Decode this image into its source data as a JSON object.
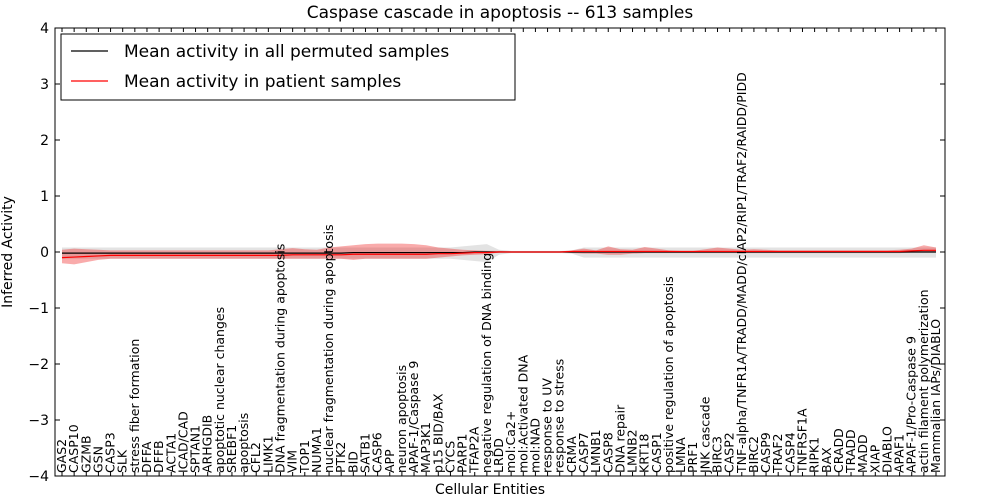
{
  "chart_data": {
    "type": "line",
    "title": "Caspase cascade in apoptosis -- 613 samples",
    "xlabel": "Cellular Entities",
    "ylabel": "Inferred Activity",
    "ylim": [
      -4,
      4
    ],
    "yticks": [
      -4,
      -3,
      -2,
      -1,
      0,
      1,
      2,
      3,
      4
    ],
    "legend_position": "top-left",
    "categories": [
      "GAS2",
      "CASP10",
      "GZMB",
      "GSN",
      "CASP3",
      "SLK",
      "stress fiber formation",
      "DFFA",
      "DFFB",
      "ACTA1",
      "ICAD/CAD",
      "SPTAN1",
      "ARHGDIB",
      "apoptotic nuclear changes",
      "SREBF1",
      "apoptosis",
      "CFL2",
      "LIMK1",
      "DNA fragmentation during apoptosis",
      "VIM",
      "TOP1",
      "NUMA1",
      "nuclear fragmentation during apoptosis",
      "PTK2",
      "BID",
      "SATB1",
      "CASP6",
      "APP",
      "neuron apoptosis",
      "APAF-1/Caspase 9",
      "MAP3K1",
      "p15 BID/BAX",
      "CYCS",
      "PARP1",
      "TFAP2A",
      "negative regulation of DNA binding",
      "LRDD",
      "mol:Ca2+",
      "mol:Activated DNA",
      "mol:NAD",
      "response to UV",
      "response to stress",
      "CRMA",
      "CASP7",
      "LMNB1",
      "CASP8",
      "DNA repair",
      "LMNB2",
      "KRT18",
      "CASP1",
      "positive regulation of apoptosis",
      "LMNA",
      "PRF1",
      "JNK cascade",
      "BIRC3",
      "CASP2",
      "TNF-alpha/TNFR1A/TRADD/MADD/cIAP2/RIP1/TRAF2/RAIDD/PIDD",
      "BIRC2",
      "CASP9",
      "TRAF2",
      "CASP4",
      "TNFRSF1A",
      "RIPK1",
      "BAX",
      "CRADD",
      "TRADD",
      "MADD",
      "XIAP",
      "DIABLO",
      "APAF1",
      "APAF-1/Pro-Caspase 9",
      "actin filament polymerization",
      "Mammalian IAPs/DIABLO"
    ],
    "series": [
      {
        "name": "Mean activity in all permuted samples",
        "color": "#000000",
        "values": [
          -0.02,
          -0.02,
          -0.02,
          -0.02,
          -0.02,
          -0.02,
          -0.02,
          -0.02,
          -0.02,
          -0.02,
          -0.02,
          -0.02,
          -0.02,
          -0.02,
          -0.02,
          -0.02,
          -0.02,
          -0.02,
          -0.02,
          -0.02,
          -0.02,
          -0.02,
          -0.02,
          -0.02,
          -0.01,
          -0.01,
          -0.01,
          -0.01,
          -0.01,
          -0.01,
          -0.01,
          -0.01,
          -0.01,
          -0.01,
          0,
          0,
          0,
          0,
          0,
          0,
          0,
          0,
          0,
          0,
          0,
          0,
          0,
          0,
          0,
          0,
          0,
          0,
          0,
          0,
          0,
          0,
          0,
          0,
          0,
          0,
          0,
          0,
          0,
          0,
          0,
          0,
          0,
          0,
          0,
          0,
          0,
          0,
          0
        ],
        "band_low": [
          -0.12,
          -0.12,
          -0.12,
          -0.12,
          -0.12,
          -0.12,
          -0.12,
          -0.12,
          -0.12,
          -0.12,
          -0.12,
          -0.12,
          -0.12,
          -0.12,
          -0.12,
          -0.12,
          -0.12,
          -0.12,
          -0.12,
          -0.12,
          -0.12,
          -0.12,
          -0.12,
          -0.12,
          -0.12,
          -0.12,
          -0.12,
          -0.12,
          -0.12,
          -0.12,
          -0.12,
          -0.12,
          -0.12,
          -0.14,
          -0.16,
          -0.18,
          -0.05,
          -0.02,
          -0.02,
          -0.02,
          -0.02,
          -0.02,
          -0.03,
          -0.1,
          -0.1,
          -0.1,
          -0.1,
          -0.1,
          -0.1,
          -0.1,
          -0.1,
          -0.1,
          -0.1,
          -0.1,
          -0.1,
          -0.1,
          -0.1,
          -0.1,
          -0.1,
          -0.1,
          -0.1,
          -0.1,
          -0.1,
          -0.1,
          -0.1,
          -0.1,
          -0.1,
          -0.1,
          -0.1,
          -0.1,
          -0.1,
          -0.1,
          -0.1
        ],
        "band_high": [
          0.08,
          0.08,
          0.08,
          0.08,
          0.08,
          0.08,
          0.08,
          0.08,
          0.08,
          0.08,
          0.08,
          0.08,
          0.08,
          0.08,
          0.08,
          0.08,
          0.08,
          0.08,
          0.08,
          0.08,
          0.08,
          0.08,
          0.08,
          0.08,
          0.08,
          0.08,
          0.08,
          0.08,
          0.08,
          0.08,
          0.08,
          0.08,
          0.08,
          0.1,
          0.12,
          0.14,
          0.04,
          0.02,
          0.02,
          0.02,
          0.02,
          0.02,
          0.03,
          0.08,
          0.08,
          0.08,
          0.08,
          0.08,
          0.08,
          0.08,
          0.08,
          0.08,
          0.08,
          0.08,
          0.08,
          0.08,
          0.08,
          0.08,
          0.08,
          0.08,
          0.08,
          0.08,
          0.08,
          0.08,
          0.08,
          0.08,
          0.08,
          0.08,
          0.08,
          0.08,
          0.08,
          0.08,
          0.08
        ]
      },
      {
        "name": "Mean activity in patient samples",
        "color": "#ff0000",
        "values": [
          -0.1,
          -0.09,
          -0.08,
          -0.07,
          -0.06,
          -0.06,
          -0.06,
          -0.06,
          -0.06,
          -0.06,
          -0.06,
          -0.06,
          -0.06,
          -0.06,
          -0.06,
          -0.06,
          -0.06,
          -0.06,
          -0.06,
          -0.05,
          -0.05,
          -0.05,
          -0.05,
          -0.05,
          -0.04,
          -0.04,
          -0.04,
          -0.04,
          -0.04,
          -0.04,
          -0.04,
          -0.03,
          -0.03,
          -0.02,
          -0.01,
          -0.01,
          0,
          0,
          0,
          0,
          0,
          0,
          0.01,
          0.01,
          0.01,
          0.01,
          0.01,
          0.01,
          0.01,
          0.01,
          0.01,
          0.01,
          0.01,
          0.01,
          0.01,
          0.01,
          0.01,
          0.01,
          0.01,
          0.01,
          0.01,
          0.01,
          0.01,
          0.01,
          0.01,
          0.01,
          0.01,
          0.01,
          0.01,
          0.01,
          0.02,
          0.03,
          0.03
        ],
        "band_low": [
          -0.2,
          -0.22,
          -0.18,
          -0.14,
          -0.12,
          -0.12,
          -0.12,
          -0.12,
          -0.12,
          -0.12,
          -0.12,
          -0.12,
          -0.12,
          -0.12,
          -0.12,
          -0.12,
          -0.12,
          -0.12,
          -0.12,
          -0.12,
          -0.12,
          -0.12,
          -0.12,
          -0.12,
          -0.14,
          -0.12,
          -0.12,
          -0.12,
          -0.12,
          -0.12,
          -0.12,
          -0.1,
          -0.08,
          -0.06,
          -0.05,
          -0.04,
          -0.01,
          -0.01,
          -0.01,
          -0.01,
          -0.01,
          -0.01,
          -0.02,
          -0.03,
          -0.03,
          -0.05,
          -0.05,
          -0.03,
          -0.02,
          -0.02,
          -0.02,
          -0.02,
          -0.02,
          -0.02,
          -0.02,
          -0.02,
          -0.02,
          -0.02,
          -0.02,
          -0.02,
          -0.02,
          -0.02,
          -0.02,
          -0.02,
          -0.02,
          -0.02,
          -0.02,
          -0.02,
          -0.02,
          -0.02,
          -0.01,
          -0.01,
          0
        ],
        "band_high": [
          0.04,
          0.06,
          0.05,
          0.04,
          0.03,
          0.03,
          0.03,
          0.03,
          0.03,
          0.03,
          0.03,
          0.03,
          0.03,
          0.03,
          0.03,
          0.03,
          0.03,
          0.03,
          0.05,
          0.07,
          0.05,
          0.04,
          0.08,
          0.1,
          0.12,
          0.14,
          0.15,
          0.15,
          0.15,
          0.14,
          0.12,
          0.08,
          0.06,
          0.04,
          0.03,
          0.02,
          0.02,
          0.01,
          0.01,
          0.01,
          0.01,
          0.01,
          0.03,
          0.06,
          0.03,
          0.1,
          0.05,
          0.04,
          0.09,
          0.06,
          0.03,
          0.02,
          0.02,
          0.05,
          0.08,
          0.06,
          0.04,
          0.05,
          0.04,
          0.03,
          0.03,
          0.03,
          0.03,
          0.03,
          0.03,
          0.03,
          0.03,
          0.03,
          0.03,
          0.04,
          0.06,
          0.12,
          0.08
        ]
      }
    ]
  }
}
